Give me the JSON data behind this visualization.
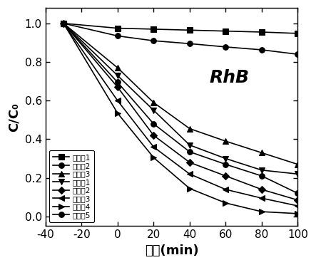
{
  "title": "RhB",
  "xlabel": "时间(min)",
  "ylabel": "C/C₀",
  "xlim": [
    -40,
    100
  ],
  "ylim": [
    -0.05,
    1.08
  ],
  "xticks": [
    -40,
    -20,
    0,
    20,
    40,
    60,
    80,
    100
  ],
  "yticks": [
    0.0,
    0.2,
    0.4,
    0.6,
    0.8,
    1.0
  ],
  "series": [
    {
      "label": "对比例1",
      "marker": "s",
      "x": [
        -30,
        0,
        20,
        40,
        60,
        80,
        100
      ],
      "y": [
        1.0,
        0.975,
        0.97,
        0.965,
        0.96,
        0.955,
        0.948
      ]
    },
    {
      "label": "对比例2",
      "marker": "o",
      "x": [
        -30,
        0,
        20,
        40,
        60,
        80,
        100
      ],
      "y": [
        1.0,
        0.935,
        0.91,
        0.895,
        0.878,
        0.863,
        0.84
      ]
    },
    {
      "label": "对比例3",
      "marker": "^",
      "x": [
        -30,
        0,
        20,
        40,
        60,
        80,
        100
      ],
      "y": [
        1.0,
        0.77,
        0.59,
        0.455,
        0.39,
        0.33,
        0.27
      ]
    },
    {
      "label": "实施例1",
      "marker": "v",
      "x": [
        -30,
        0,
        20,
        40,
        60,
        80,
        100
      ],
      "y": [
        1.0,
        0.73,
        0.55,
        0.37,
        0.3,
        0.24,
        0.22
      ]
    },
    {
      "label": "实施例2",
      "marker": "D",
      "x": [
        -30,
        0,
        20,
        40,
        60,
        80,
        100
      ],
      "y": [
        1.0,
        0.67,
        0.42,
        0.28,
        0.21,
        0.14,
        0.085
      ]
    },
    {
      "label": "实施例3",
      "marker": "<",
      "x": [
        -30,
        0,
        20,
        40,
        60,
        80,
        100
      ],
      "y": [
        1.0,
        0.6,
        0.36,
        0.22,
        0.14,
        0.095,
        0.055
      ]
    },
    {
      "label": "实施例4",
      "marker": ">",
      "x": [
        -30,
        0,
        20,
        40,
        60,
        80,
        100
      ],
      "y": [
        1.0,
        0.535,
        0.305,
        0.145,
        0.07,
        0.025,
        0.015
      ]
    },
    {
      "label": "实施例5",
      "marker": "o",
      "x": [
        -30,
        0,
        20,
        40,
        60,
        80,
        100
      ],
      "y": [
        1.0,
        0.695,
        0.48,
        0.335,
        0.27,
        0.21,
        0.12
      ]
    }
  ],
  "line_color": "black",
  "marker_color": "black",
  "linewidth": 1.2,
  "markersize": 5.5,
  "legend_fontsize": 7.5,
  "axis_label_fontsize": 13,
  "tick_fontsize": 11,
  "annotation_fontsize": 18,
  "background_color": "#ffffff"
}
